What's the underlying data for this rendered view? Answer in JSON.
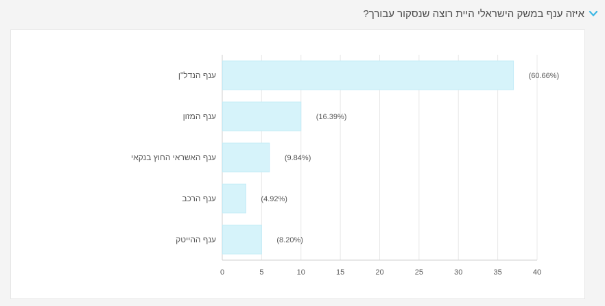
{
  "header": {
    "question": "איזה ענף במשק הישראלי היית רוצה שנסקור עבורך?",
    "toggle_icon": "chevron-down-icon",
    "accent_color": "#3cb7e4"
  },
  "chart_data": {
    "type": "bar",
    "orientation": "horizontal",
    "categories": [
      "ענף הנדל\"ן",
      "ענף המזון",
      "ענף האשראי החוץ בנקאי",
      "ענף הרכב",
      "ענף ההייטק"
    ],
    "values": [
      37,
      10,
      6,
      3,
      5
    ],
    "percent_labels": [
      "(60.66%)",
      "(16.39%)",
      "(9.84%)",
      "(4.92%)",
      "(8.20%)"
    ],
    "xlim": [
      0,
      40
    ],
    "xticks": [
      "0",
      "5",
      "10",
      "15",
      "20",
      "25",
      "30",
      "35",
      "40"
    ],
    "grid": true,
    "bar_color": "#d6f3fa",
    "bar_edge_color": "#c4ecf7"
  }
}
